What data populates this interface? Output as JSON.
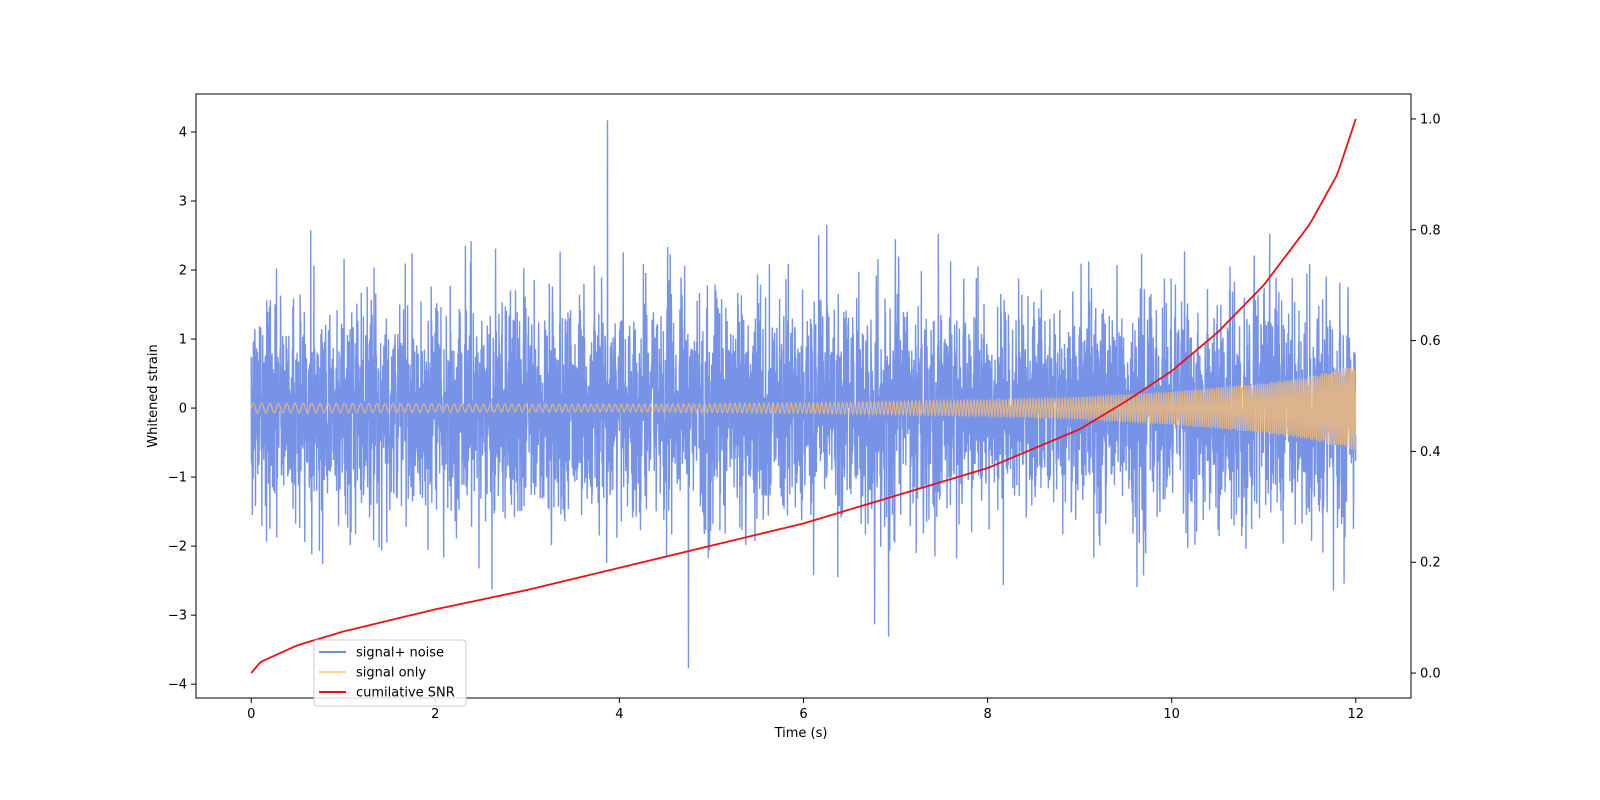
{
  "chart_data": {
    "type": "line",
    "title": "",
    "xlabel": "Time (s)",
    "ylabel": "Whitened strain",
    "y2label": "",
    "xlim": [
      -0.6,
      12.6
    ],
    "ylim": [
      -4.2,
      4.55
    ],
    "y2lim": [
      -0.045,
      1.045
    ],
    "xticks": [
      0,
      2,
      4,
      6,
      8,
      10,
      12
    ],
    "yticks": [
      -4,
      -3,
      -2,
      -1,
      0,
      1,
      2,
      3,
      4
    ],
    "y2ticks": [
      0.0,
      0.2,
      0.4,
      0.6,
      0.8,
      1.0
    ],
    "xtick_labels": [
      "0",
      "2",
      "4",
      "6",
      "8",
      "10",
      "12"
    ],
    "ytick_labels": [
      "−4",
      "−3",
      "−2",
      "−1",
      "0",
      "1",
      "2",
      "3",
      "4"
    ],
    "y2tick_labels": [
      "0.0",
      "0.2",
      "0.4",
      "0.6",
      "0.8",
      "1.0"
    ],
    "grid": false,
    "legend_position": "lower-left",
    "series": [
      {
        "name": "signal+ noise",
        "axis": "left",
        "color": "#6a8ae6",
        "kind": "noise",
        "x_range": [
          0,
          12
        ],
        "sigma": 0.8,
        "peak_max": 4.17,
        "peak_min": -3.77
      },
      {
        "name": "signal only",
        "axis": "left",
        "color": "#fdbf6f",
        "kind": "chirp",
        "x_range": [
          0,
          12
        ],
        "envelope": {
          "x": [
            0,
            2,
            4,
            6,
            8,
            9,
            10,
            11,
            11.5,
            12
          ],
          "amplitude": [
            0.07,
            0.06,
            0.055,
            0.075,
            0.12,
            0.16,
            0.24,
            0.36,
            0.46,
            0.62
          ]
        }
      },
      {
        "name": "cumilative SNR",
        "axis": "right",
        "color": "#ee1111",
        "kind": "line",
        "x": [
          0,
          0.1,
          0.5,
          1,
          2,
          3,
          4,
          5,
          6,
          7,
          8,
          9,
          9.5,
          10,
          10.5,
          11,
          11.5,
          11.8,
          12
        ],
        "y": [
          0.0,
          0.02,
          0.05,
          0.075,
          0.115,
          0.15,
          0.19,
          0.23,
          0.27,
          0.32,
          0.37,
          0.44,
          0.49,
          0.545,
          0.615,
          0.7,
          0.81,
          0.9,
          1.0
        ]
      }
    ]
  }
}
